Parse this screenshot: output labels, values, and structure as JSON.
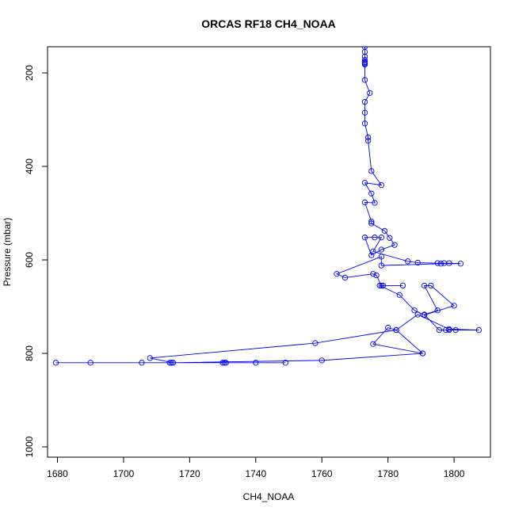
{
  "chart_data": {
    "type": "line",
    "title": "ORCAS RF18 CH4_NOAA",
    "xlabel": "CH4_NOAA",
    "ylabel": "Pressure (mbar)",
    "xlim": [
      1677,
      1811
    ],
    "ylim": [
      1022,
      144
    ],
    "y_axis_reversed": true,
    "xticks": [
      1680,
      1700,
      1720,
      1740,
      1760,
      1780,
      1800
    ],
    "yticks": [
      200,
      400,
      600,
      800,
      1000
    ],
    "grid": false,
    "legend": "none",
    "colors": {
      "series": "#0000ff",
      "axes": "#000000",
      "background": "#ffffff"
    },
    "series": [
      {
        "marker": "open-circle",
        "points": [
          [
            1773,
            144
          ],
          [
            1773,
            155
          ],
          [
            1773,
            165
          ],
          [
            1773,
            172
          ],
          [
            1773,
            176
          ],
          [
            1773,
            178
          ],
          [
            1773,
            180
          ],
          [
            1773,
            182
          ],
          [
            1773,
            215
          ],
          [
            1774.5,
            243
          ],
          [
            1773,
            262
          ],
          [
            1773,
            285
          ],
          [
            1773,
            308
          ],
          [
            1774,
            338
          ],
          [
            1774,
            345
          ],
          [
            1775,
            410
          ],
          [
            1778,
            440
          ],
          [
            1773,
            435
          ],
          [
            1775,
            458
          ],
          [
            1776,
            478
          ],
          [
            1773,
            477
          ],
          [
            1775,
            518
          ],
          [
            1775,
            522
          ],
          [
            1779,
            538
          ],
          [
            1780.5,
            553
          ],
          [
            1782,
            568
          ],
          [
            1778,
            578
          ],
          [
            1775,
            590
          ],
          [
            1773,
            552
          ],
          [
            1776,
            552
          ],
          [
            1778,
            552
          ],
          [
            1775.5,
            582
          ],
          [
            1786,
            603
          ],
          [
            1789,
            606
          ],
          [
            1795,
            607
          ],
          [
            1797,
            607
          ],
          [
            1798.5,
            607
          ],
          [
            1802,
            608
          ],
          [
            1796,
            608
          ],
          [
            1778,
            612
          ],
          [
            1778,
            593
          ],
          [
            1764.5,
            630
          ],
          [
            1767,
            638
          ],
          [
            1775.5,
            630
          ],
          [
            1776.5,
            633
          ],
          [
            1778,
            655
          ],
          [
            1778.5,
            655
          ],
          [
            1784.5,
            655
          ],
          [
            1777.5,
            655
          ],
          [
            1783.5,
            675
          ],
          [
            1788,
            708
          ],
          [
            1791,
            718
          ],
          [
            1800,
            698
          ],
          [
            1793,
            655
          ],
          [
            1791,
            655
          ],
          [
            1795,
            708
          ],
          [
            1791,
            717
          ],
          [
            1795.5,
            750
          ],
          [
            1797.5,
            750
          ],
          [
            1798.5,
            750
          ],
          [
            1800.5,
            750
          ],
          [
            1807.5,
            750
          ],
          [
            1798.5,
            748
          ],
          [
            1789,
            717
          ],
          [
            1782.5,
            750
          ],
          [
            1780,
            745
          ],
          [
            1775.5,
            780
          ],
          [
            1790.5,
            800
          ],
          [
            1782.5,
            750
          ],
          [
            1758,
            778
          ],
          [
            1708,
            810
          ],
          [
            1715,
            820
          ],
          [
            1705.5,
            820
          ],
          [
            1690,
            820
          ],
          [
            1679.5,
            820
          ],
          [
            1714,
            820
          ],
          [
            1730.5,
            820
          ],
          [
            1731,
            820
          ],
          [
            1740,
            820
          ],
          [
            1749,
            820
          ],
          [
            1730,
            820
          ],
          [
            1714.5,
            820
          ],
          [
            1760,
            815
          ],
          [
            1790.5,
            800
          ]
        ]
      }
    ]
  }
}
